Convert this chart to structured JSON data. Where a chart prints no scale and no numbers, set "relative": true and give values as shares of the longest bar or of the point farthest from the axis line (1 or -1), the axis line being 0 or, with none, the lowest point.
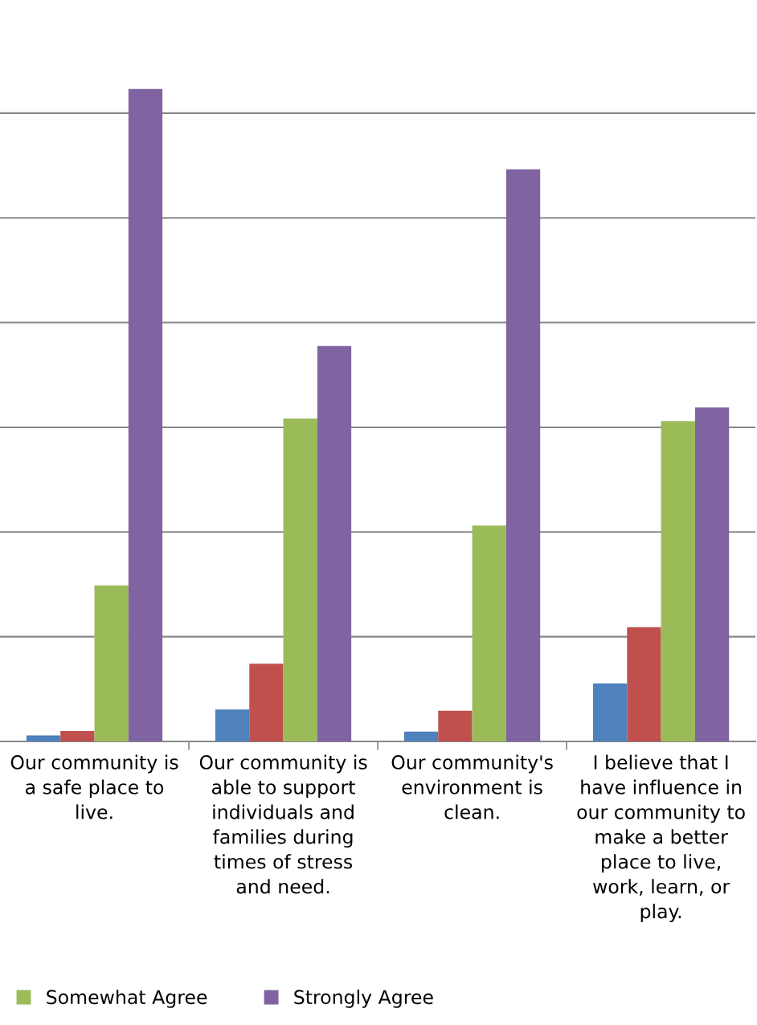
{
  "chart_data": {
    "type": "bar",
    "relative": true,
    "grid": "y",
    "legend": "bottom left",
    "categories": [
      "Our community is\na safe place to\nlive.",
      "Our community is\nable to support\nindividuals and\nfamilies during\ntimes of stress\nand need.",
      "Our community's\nenvironment is\nclean.",
      "I believe that I\nhave influence in\nour community to\nmake a better\nplace to live,\nwork, learn, or\nplay."
    ],
    "series": [
      {
        "color": "#4f81bd",
        "values": [
          0.009,
          0.049,
          0.015,
          0.089
        ]
      },
      {
        "color": "#c0504d",
        "values": [
          0.016,
          0.119,
          0.047,
          0.175
        ]
      },
      {
        "name": "Somewhat Agree",
        "color": "#9bbb59",
        "values": [
          0.239,
          0.495,
          0.331,
          0.491
        ]
      },
      {
        "name": "Strongly Agree",
        "color": "#8064a2",
        "values": [
          1,
          0.606,
          0.877,
          0.512
        ]
      }
    ]
  }
}
